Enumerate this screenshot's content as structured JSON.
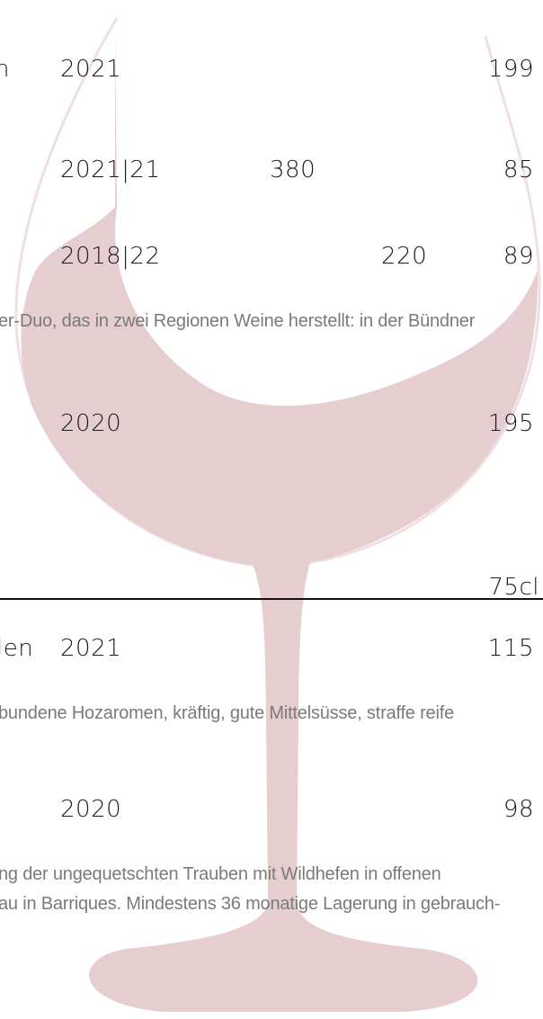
{
  "rows": [
    {
      "name": "n",
      "vintage": "2021",
      "price": "199"
    },
    {
      "vintage": "2021|21",
      "volume": "380",
      "price": "85"
    },
    {
      "vintage": "2018|22",
      "volume": "220",
      "price": "89"
    },
    {
      "description": "er-Duo, das in zwei Regionen Weine herstellt: in der Bündner"
    },
    {
      "vintage": "2020",
      "price": "195"
    },
    {
      "unit": "75cl"
    },
    {
      "name": "len",
      "vintage": "2021",
      "price": "115"
    },
    {
      "description": "bundene Hozaromen, kräftig, gute Mittelsüsse, straffe reife"
    },
    {
      "vintage": "2020",
      "price": "98"
    },
    {
      "description": "ng der ungequetschten Trauben mit Wildhefen in offenen"
    },
    {
      "description": "au in Barriques. Mindestens 36 monatige Lagerung in gebrauch-"
    }
  ]
}
